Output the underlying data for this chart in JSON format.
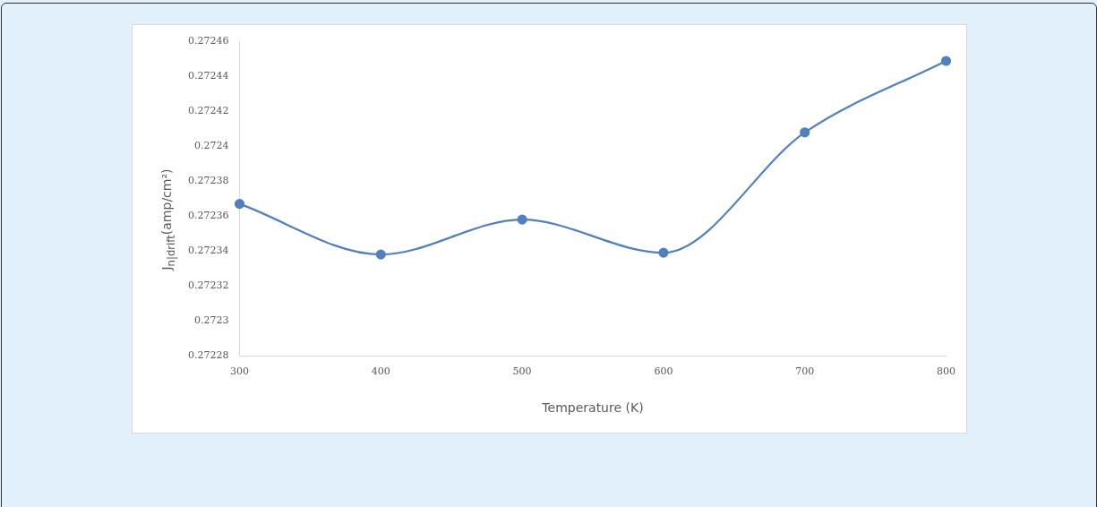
{
  "chart_data": {
    "type": "line",
    "xlabel": "Temperature (K)",
    "ylabel": "J$_{n|drift}$(amp/cm²)",
    "categories": [
      "300",
      "400",
      "500",
      "600",
      "700",
      "800"
    ],
    "series": [
      {
        "color": "#4f81bd",
        "values": [
          0.272367,
          0.272338,
          0.272358,
          0.272339,
          0.272408,
          0.272449
        ]
      }
    ],
    "ylim": [
      0.27228,
      0.27246
    ],
    "yticks": [
      0.27228,
      0.2723,
      0.27232,
      0.27234,
      0.27236,
      0.27238,
      0.2724,
      0.27242,
      0.27244,
      0.27246
    ],
    "marker": "circle",
    "line_style": "solid",
    "grid": false,
    "legend": false
  }
}
